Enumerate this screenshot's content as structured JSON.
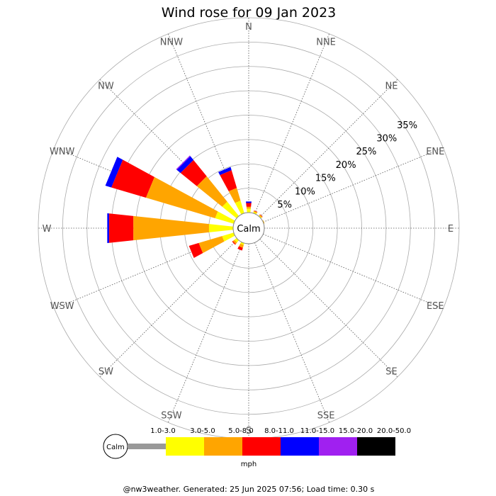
{
  "chart_data": {
    "type": "wind-rose",
    "title": "Wind rose for 09 Jan 2023",
    "directions": [
      "N",
      "NNE",
      "NE",
      "ENE",
      "E",
      "ESE",
      "SE",
      "SSE",
      "S",
      "SSW",
      "SW",
      "WSW",
      "W",
      "WNW",
      "NW",
      "NNW"
    ],
    "radial_unit": "%",
    "radial_ticks": [
      5,
      10,
      15,
      20,
      25,
      30,
      35
    ],
    "radial_tick_labels": [
      "5%",
      "10%",
      "15%",
      "20%",
      "25%",
      "30%",
      "35%"
    ],
    "radial_max": 40,
    "calm_label": "Calm",
    "speed_unit": "mph",
    "speed_bins": [
      {
        "label": "1.0-3.0",
        "color": "#999999"
      },
      {
        "label": "3.0-5.0",
        "color": "#ffff00"
      },
      {
        "label": "5.0-8.0",
        "color": "#ffa500"
      },
      {
        "label": "8.0-11.0",
        "color": "#ff0000"
      },
      {
        "label": "11.0-15.0",
        "color": "#0000ff"
      },
      {
        "label": "15.0-20.0",
        "color": "#a020f0"
      },
      {
        "label": "20.0-50.0",
        "color": "#000000"
      }
    ],
    "cumulative_percent_by_direction": {
      "N": [
        0.0,
        0.8,
        1.2,
        2.0,
        2.3,
        2.3,
        2.3
      ],
      "NNE": [
        0.0,
        0.3,
        0.5,
        0.6,
        0.6,
        0.6,
        0.6
      ],
      "NE": [
        0.0,
        0.2,
        0.4,
        0.5,
        0.5,
        0.5,
        0.5
      ],
      "ENE": [
        0.0,
        0.1,
        0.2,
        0.2,
        0.2,
        0.2,
        0.2
      ],
      "E": [
        0.0,
        0.0,
        0.0,
        0.0,
        0.0,
        0.0,
        0.0
      ],
      "ESE": [
        0.0,
        0.0,
        0.0,
        0.0,
        0.0,
        0.0,
        0.0
      ],
      "SE": [
        0.0,
        0.0,
        0.0,
        0.0,
        0.0,
        0.0,
        0.0
      ],
      "SSE": [
        0.0,
        0.0,
        0.0,
        0.0,
        0.0,
        0.0,
        0.0
      ],
      "S": [
        0.0,
        0.0,
        0.0,
        0.0,
        0.0,
        0.0,
        0.0
      ],
      "SSW": [
        0.0,
        0.4,
        1.0,
        1.6,
        1.6,
        1.6,
        1.6
      ],
      "SW": [
        0.0,
        0.6,
        1.0,
        1.2,
        1.2,
        1.2,
        1.2
      ],
      "WSW": [
        0.0,
        2.5,
        7.5,
        9.6,
        9.6,
        9.6,
        9.6
      ],
      "W": [
        0.0,
        5.0,
        20.6,
        25.6,
        26.0,
        26.0,
        26.0
      ],
      "WNW": [
        0.0,
        4.0,
        18.8,
        26.2,
        27.5,
        27.5,
        27.5
      ],
      "NW": [
        0.0,
        3.8,
        10.5,
        14.8,
        15.8,
        16.0,
        16.0
      ],
      "NNW": [
        0.0,
        2.7,
        5.4,
        9.2,
        9.9,
        9.9,
        9.9
      ]
    }
  },
  "footer": "@nw3weather. Generated: 25 Jun 2025 07:56; Load time: 0.30 s"
}
